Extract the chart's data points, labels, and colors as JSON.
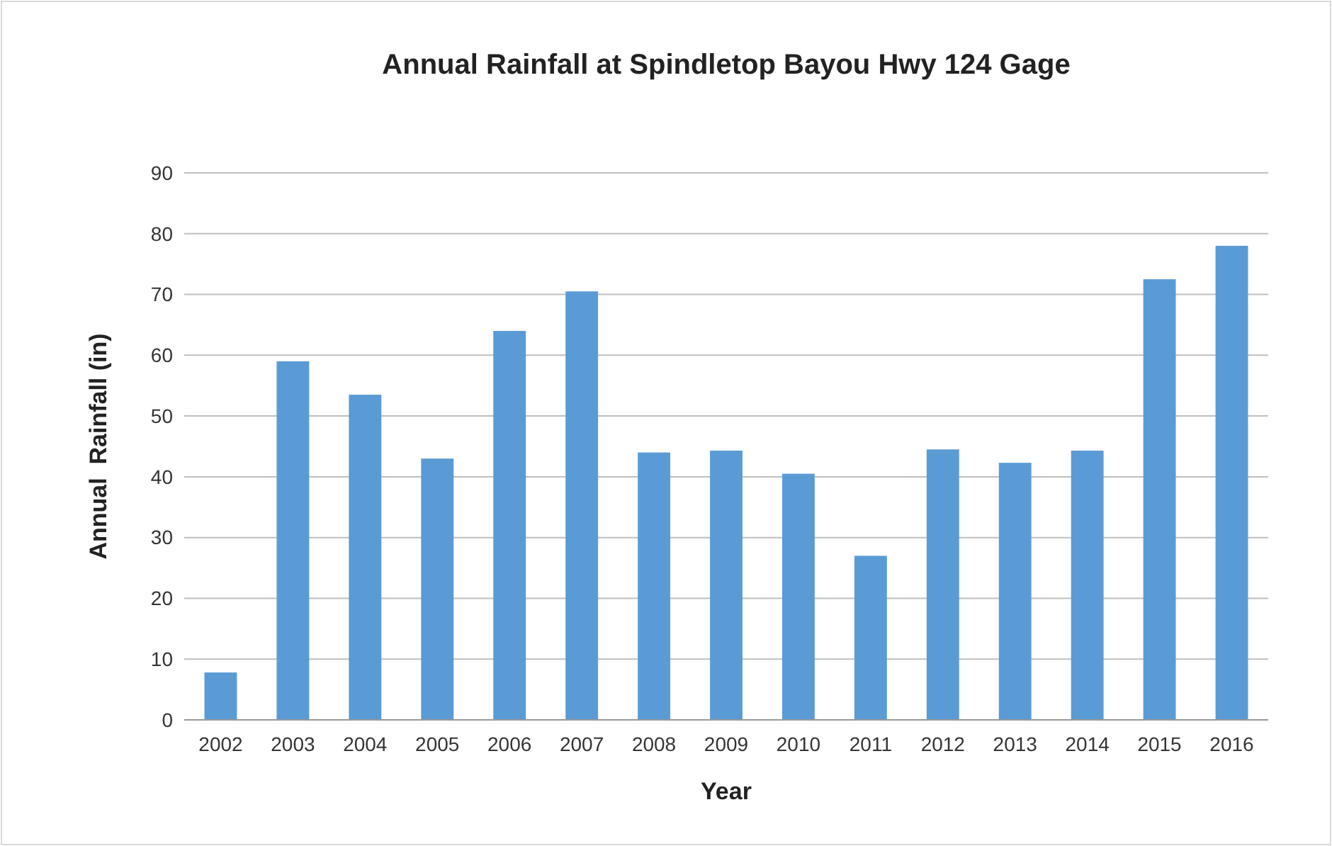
{
  "chart_data": {
    "type": "bar",
    "title": "Annual Rainfall at Spindletop Bayou Hwy 124 Gage",
    "xlabel": "Year",
    "ylabel": "Annual  Rainfall (in)",
    "categories": [
      "2002",
      "2003",
      "2004",
      "2005",
      "2006",
      "2007",
      "2008",
      "2009",
      "2010",
      "2011",
      "2012",
      "2013",
      "2014",
      "2015",
      "2016"
    ],
    "values": [
      7.8,
      59,
      53.5,
      43,
      64,
      70.5,
      44,
      44.3,
      40.5,
      27,
      44.5,
      42.3,
      44.3,
      72.5,
      78
    ],
    "color": "#5b9bd5",
    "ylim": [
      0,
      90
    ],
    "yticks": [
      0,
      10,
      20,
      30,
      40,
      50,
      60,
      70,
      80,
      90
    ],
    "grid": "y"
  }
}
